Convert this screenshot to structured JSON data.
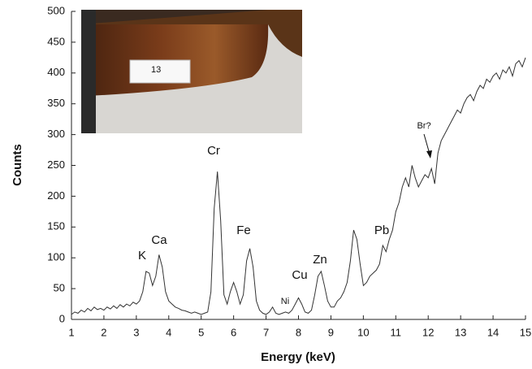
{
  "chart_data": {
    "type": "line",
    "x_label": "Energy (keV)",
    "y_label": "Counts",
    "x": [
      1,
      1.1,
      1.2,
      1.3,
      1.4,
      1.5,
      1.6,
      1.7,
      1.8,
      1.9,
      2,
      2.1,
      2.2,
      2.3,
      2.4,
      2.5,
      2.6,
      2.7,
      2.8,
      2.9,
      3,
      3.1,
      3.2,
      3.3,
      3.4,
      3.5,
      3.6,
      3.7,
      3.8,
      3.9,
      4,
      4.1,
      4.2,
      4.3,
      4.4,
      4.5,
      4.6,
      4.7,
      4.8,
      4.9,
      5,
      5.1,
      5.2,
      5.3,
      5.4,
      5.5,
      5.6,
      5.7,
      5.8,
      5.9,
      6,
      6.1,
      6.2,
      6.3,
      6.4,
      6.5,
      6.6,
      6.7,
      6.8,
      6.9,
      7,
      7.1,
      7.2,
      7.3,
      7.4,
      7.5,
      7.6,
      7.7,
      7.8,
      7.9,
      8,
      8.1,
      8.2,
      8.3,
      8.4,
      8.5,
      8.6,
      8.7,
      8.8,
      8.9,
      9,
      9.1,
      9.2,
      9.3,
      9.4,
      9.5,
      9.6,
      9.7,
      9.8,
      9.9,
      10,
      10.1,
      10.2,
      10.3,
      10.4,
      10.5,
      10.6,
      10.7,
      10.8,
      10.9,
      11,
      11.1,
      11.2,
      11.3,
      11.4,
      11.5,
      11.6,
      11.7,
      11.8,
      11.9,
      12,
      12.1,
      12.2,
      12.3,
      12.4,
      12.5,
      12.6,
      12.7,
      12.8,
      12.9,
      13,
      13.1,
      13.2,
      13.3,
      13.4,
      13.5,
      13.6,
      13.7,
      13.8,
      13.9,
      14,
      14.1,
      14.2,
      14.3,
      14.4,
      14.5,
      14.6,
      14.7,
      14.8,
      14.9,
      15
    ],
    "values": [
      8,
      12,
      10,
      15,
      12,
      18,
      14,
      20,
      16,
      18,
      15,
      20,
      17,
      22,
      18,
      24,
      20,
      25,
      22,
      28,
      25,
      30,
      45,
      78,
      75,
      55,
      70,
      105,
      85,
      45,
      30,
      25,
      20,
      18,
      15,
      14,
      12,
      10,
      12,
      10,
      8,
      10,
      12,
      45,
      180,
      240,
      160,
      40,
      25,
      45,
      60,
      45,
      25,
      40,
      95,
      115,
      85,
      30,
      15,
      10,
      8,
      12,
      20,
      10,
      8,
      10,
      12,
      10,
      15,
      25,
      35,
      25,
      12,
      10,
      15,
      40,
      70,
      78,
      55,
      30,
      20,
      20,
      30,
      35,
      45,
      60,
      95,
      145,
      130,
      90,
      55,
      60,
      70,
      75,
      80,
      90,
      120,
      110,
      130,
      145,
      175,
      190,
      215,
      230,
      215,
      250,
      230,
      215,
      225,
      235,
      230,
      245,
      220,
      270,
      290,
      300,
      310,
      320,
      330,
      340,
      335,
      350,
      360,
      365,
      355,
      370,
      380,
      375,
      390,
      385,
      395,
      400,
      390,
      405,
      400,
      410,
      395,
      415,
      420,
      410,
      425
    ],
    "color": "#333333",
    "xlim": [
      1,
      15
    ],
    "xticks": [
      1,
      2,
      3,
      4,
      5,
      6,
      7,
      8,
      9,
      10,
      11,
      12,
      13,
      14,
      15
    ],
    "ylim": [
      0,
      500
    ],
    "yticks": [
      0,
      50,
      100,
      150,
      200,
      250,
      300,
      350,
      400,
      450,
      500
    ],
    "grid": false,
    "annotations": [
      "K",
      "Ca",
      "Cr",
      "Fe",
      "Ni",
      "Cu",
      "Zn",
      "Pb",
      "Br?"
    ],
    "inset_label": "13"
  }
}
